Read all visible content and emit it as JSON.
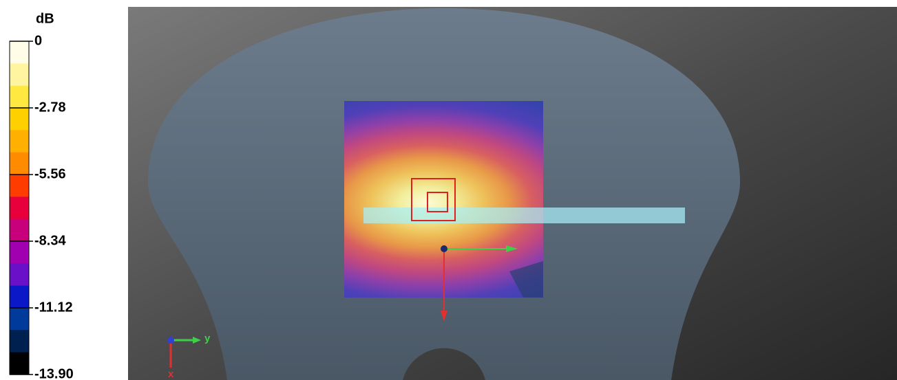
{
  "colorbar": {
    "title": "dB",
    "ylim": [
      -13.9,
      0
    ],
    "yticks": [
      0,
      -2.78,
      -5.56,
      -8.34,
      -11.12,
      {
        "value": -13.9,
        "label": "-13.90"
      }
    ],
    "colors": [
      "#fffde8",
      "#fff5a0",
      "#ffe840",
      "#ffd000",
      "#ffb000",
      "#ff8c00",
      "#ff3c00",
      "#e8003c",
      "#c8007c",
      "#a000b0",
      "#6a10c8",
      "#0a18c8",
      "#003a9a",
      "#002050",
      "#000000"
    ]
  },
  "axes": {
    "y": "y",
    "x": "x"
  }
}
